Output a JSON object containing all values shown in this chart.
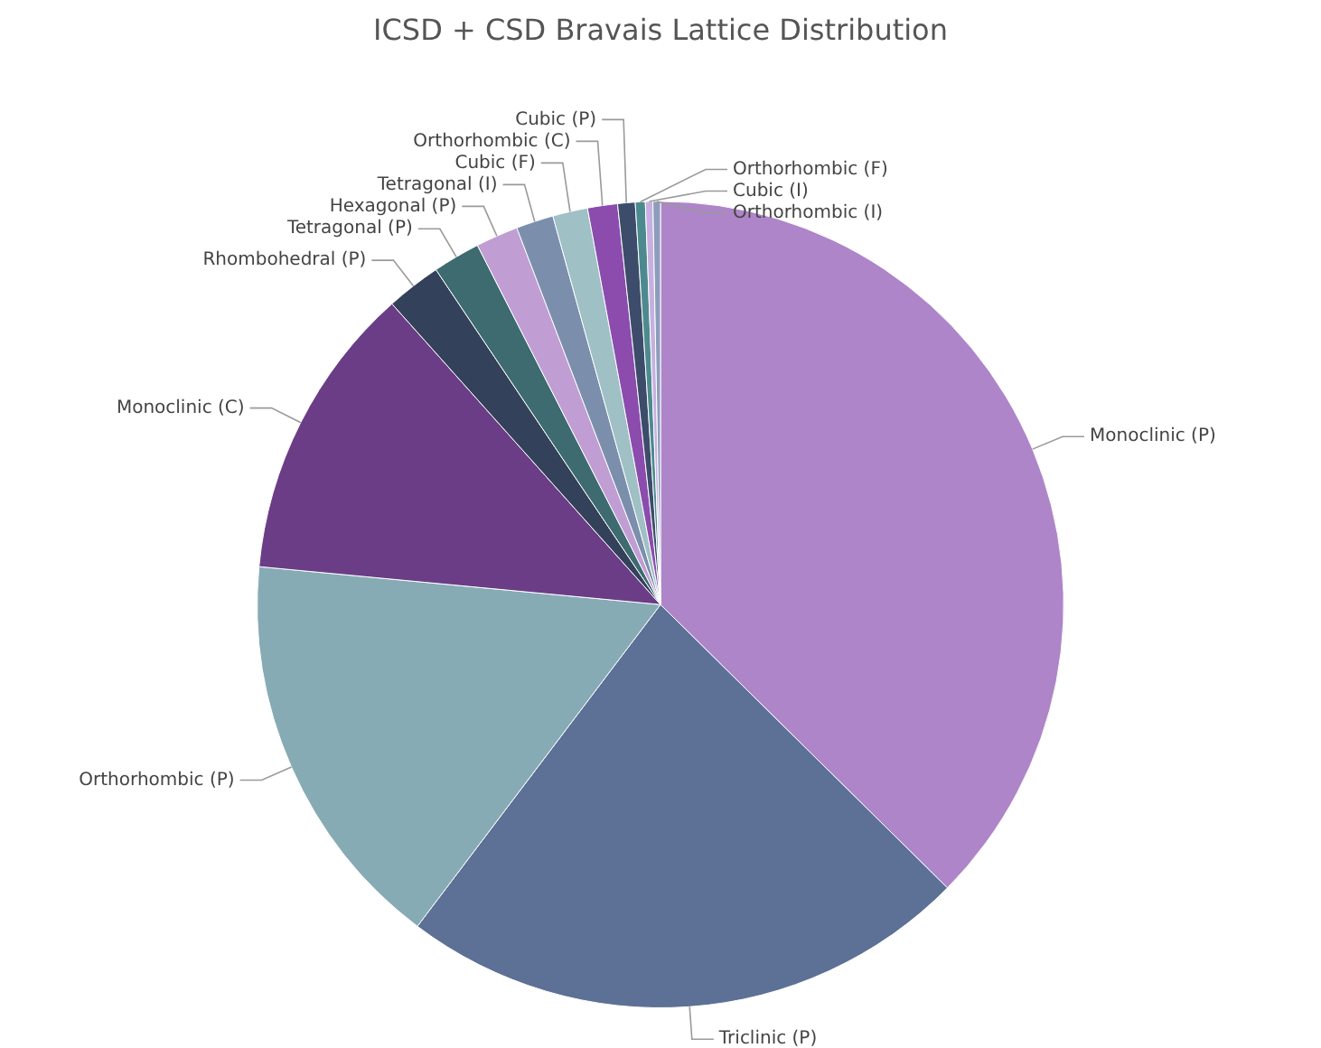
{
  "chart_data": {
    "type": "pie",
    "title": "ICSD + CSD Bravais Lattice Distribution",
    "categories": [
      "Monoclinic (P)",
      "Triclinic (P)",
      "Orthorhombic (P)",
      "Monoclinic (C)",
      "Rhombohedral (P)",
      "Tetragonal (P)",
      "Hexagonal (P)",
      "Tetragonal (I)",
      "Cubic (F)",
      "Orthorhombic (C)",
      "Cubic (P)",
      "Orthorhombic (F)",
      "Cubic (I)",
      "Orthorhombic (I)"
    ],
    "values": [
      37.4,
      22.9,
      16.2,
      11.9,
      2.2,
      1.9,
      1.7,
      1.5,
      1.4,
      1.2,
      0.7,
      0.4,
      0.3,
      0.3
    ],
    "colors": [
      "#ad85c8",
      "#5d7096",
      "#86abb4",
      "#6c3d87",
      "#34415a",
      "#3d6b70",
      "#c09ed4",
      "#7b8fad",
      "#9fc0c5",
      "#8b4cad",
      "#3d4c6a",
      "#4d8a8f",
      "#c7b0e0",
      "#8d9cbb"
    ],
    "legend": false
  }
}
